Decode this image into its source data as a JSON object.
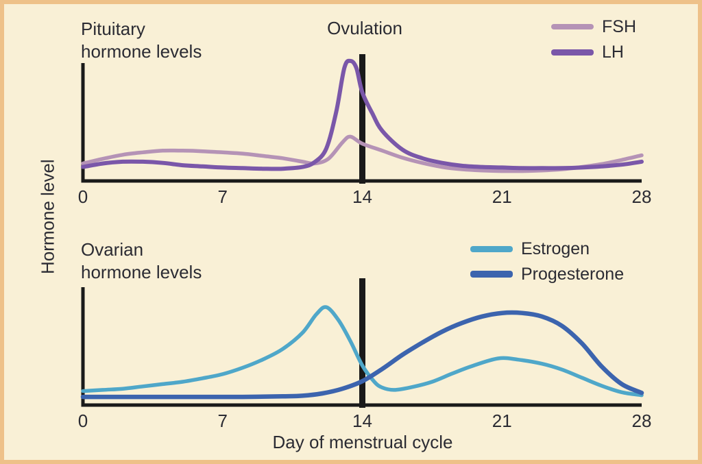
{
  "colors": {
    "background": "#f9f0d6",
    "border": "#eec189",
    "text": "#2b2b33",
    "axis": "#1a1a1a"
  },
  "chart_data": [
    {
      "type": "line",
      "panel_label": "Pituitary\nhormone levels",
      "annotation": "Ovulation",
      "ylabel": "Hormone level",
      "xlabel": "",
      "x_range": [
        0,
        28
      ],
      "y_range": [
        0,
        100
      ],
      "x_ticks": [
        0,
        7,
        14,
        21,
        28
      ],
      "ovulation_day": 14,
      "grid": false,
      "legend_position": "top-right",
      "series": [
        {
          "name": "FSH",
          "color": "#b593b6",
          "points": [
            [
              0,
              15
            ],
            [
              1,
              19
            ],
            [
              2,
              22.5
            ],
            [
              3,
              24.5
            ],
            [
              4,
              26
            ],
            [
              5,
              26
            ],
            [
              6,
              25.5
            ],
            [
              7,
              24.5
            ],
            [
              8,
              23.5
            ],
            [
              9,
              21.5
            ],
            [
              10,
              19.5
            ],
            [
              11,
              16.5
            ],
            [
              11.6,
              15
            ],
            [
              12.3,
              19
            ],
            [
              13,
              33
            ],
            [
              13.4,
              38
            ],
            [
              14,
              32
            ],
            [
              15,
              26
            ],
            [
              16,
              20
            ],
            [
              17,
              15.5
            ],
            [
              18,
              12
            ],
            [
              19,
              10
            ],
            [
              20,
              9
            ],
            [
              21,
              8.5
            ],
            [
              22,
              8.5
            ],
            [
              23,
              9
            ],
            [
              24,
              10
            ],
            [
              25,
              12
            ],
            [
              26,
              14.5
            ],
            [
              27,
              18
            ],
            [
              28,
              22
            ]
          ]
        },
        {
          "name": "LH",
          "color": "#7a57a9",
          "points": [
            [
              0,
              12
            ],
            [
              1,
              15
            ],
            [
              2,
              16.5
            ],
            [
              3,
              16.5
            ],
            [
              4,
              15.5
            ],
            [
              5,
              13.5
            ],
            [
              6,
              12.5
            ],
            [
              7,
              11.5
            ],
            [
              8,
              11
            ],
            [
              9,
              10.5
            ],
            [
              10,
              10.5
            ],
            [
              11,
              12
            ],
            [
              11.6,
              16
            ],
            [
              12.2,
              28
            ],
            [
              12.7,
              60
            ],
            [
              13.1,
              97
            ],
            [
              13.4,
              103
            ],
            [
              13.7,
              97
            ],
            [
              14,
              76
            ],
            [
              14.5,
              58
            ],
            [
              15,
              43
            ],
            [
              16,
              27
            ],
            [
              17,
              19.5
            ],
            [
              18,
              15.5
            ],
            [
              19,
              13
            ],
            [
              20,
              12
            ],
            [
              21,
              11.5
            ],
            [
              22,
              11
            ],
            [
              23,
              11
            ],
            [
              24,
              11
            ],
            [
              25,
              11.5
            ],
            [
              26,
              12.5
            ],
            [
              27,
              14
            ],
            [
              28,
              16.5
            ]
          ]
        }
      ]
    },
    {
      "type": "line",
      "panel_label": "Ovarian\nhormone levels",
      "annotation": "",
      "ylabel": "Hormone level",
      "xlabel": "Day of menstrual cycle",
      "x_range": [
        0,
        28
      ],
      "y_range": [
        0,
        100
      ],
      "x_ticks": [
        0,
        7,
        14,
        21,
        28
      ],
      "ovulation_day": 14,
      "grid": false,
      "legend_position": "top-right",
      "series": [
        {
          "name": "Estrogen",
          "color": "#4fa7c9",
          "points": [
            [
              0,
              12
            ],
            [
              1,
              13
            ],
            [
              2,
              14
            ],
            [
              3,
              16
            ],
            [
              4,
              18
            ],
            [
              5,
              20
            ],
            [
              6,
              23
            ],
            [
              7,
              26.5
            ],
            [
              8,
              32
            ],
            [
              9,
              39
            ],
            [
              10,
              48
            ],
            [
              11,
              62
            ],
            [
              11.7,
              78
            ],
            [
              12.2,
              84
            ],
            [
              12.8,
              73
            ],
            [
              13.4,
              55
            ],
            [
              14,
              34
            ],
            [
              14.6,
              20
            ],
            [
              15,
              15
            ],
            [
              15.6,
              13
            ],
            [
              16.5,
              15.5
            ],
            [
              17.5,
              20
            ],
            [
              18.5,
              27
            ],
            [
              19.5,
              33.5
            ],
            [
              20.8,
              40
            ],
            [
              21.8,
              39
            ],
            [
              23,
              35.5
            ],
            [
              24,
              30.5
            ],
            [
              25,
              23.5
            ],
            [
              26,
              16.5
            ],
            [
              27,
              11
            ],
            [
              28,
              8.5
            ]
          ]
        },
        {
          "name": "Progesterone",
          "color": "#3c64ae",
          "points": [
            [
              0,
              7
            ],
            [
              2,
              7
            ],
            [
              4,
              7
            ],
            [
              6,
              7
            ],
            [
              8,
              7
            ],
            [
              10,
              7.5
            ],
            [
              11,
              8
            ],
            [
              12,
              10
            ],
            [
              13,
              14
            ],
            [
              14,
              20.5
            ],
            [
              15,
              31
            ],
            [
              16,
              43
            ],
            [
              17,
              53.5
            ],
            [
              18,
              63
            ],
            [
              19,
              70.5
            ],
            [
              20,
              76
            ],
            [
              21,
              79
            ],
            [
              22,
              79
            ],
            [
              23,
              76
            ],
            [
              24,
              68
            ],
            [
              25,
              53
            ],
            [
              26,
              33
            ],
            [
              27,
              18
            ],
            [
              28,
              10.5
            ]
          ]
        }
      ]
    }
  ]
}
